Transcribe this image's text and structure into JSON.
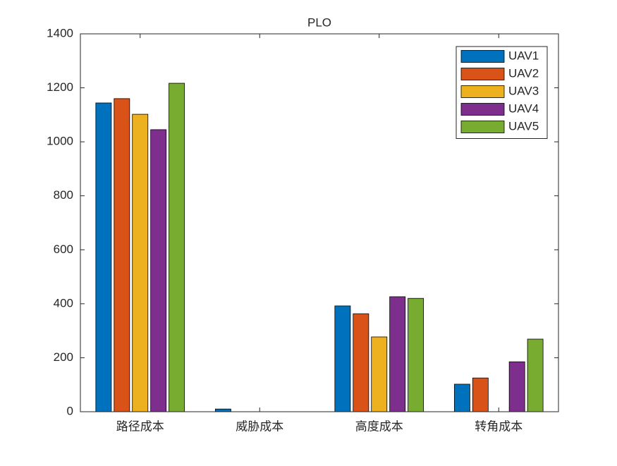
{
  "chart_data": {
    "type": "bar",
    "title": "PLO",
    "categories": [
      "路径成本",
      "威胁成本",
      "高度成本",
      "转角成本"
    ],
    "series": [
      {
        "name": "UAV1",
        "color": "#0072BD",
        "values": [
          1144,
          10,
          392,
          102
        ]
      },
      {
        "name": "UAV2",
        "color": "#D95319",
        "values": [
          1160,
          0,
          363,
          125
        ]
      },
      {
        "name": "UAV3",
        "color": "#EDB120",
        "values": [
          1102,
          0,
          277,
          0
        ]
      },
      {
        "name": "UAV4",
        "color": "#7E2F8E",
        "values": [
          1045,
          0,
          426,
          185
        ]
      },
      {
        "name": "UAV5",
        "color": "#77AC30",
        "values": [
          1217,
          0,
          420,
          269
        ]
      }
    ],
    "ylim": [
      0,
      1400
    ],
    "yticks": [
      0,
      200,
      400,
      600,
      800,
      1000,
      1200,
      1400
    ],
    "legend": "northeast"
  }
}
